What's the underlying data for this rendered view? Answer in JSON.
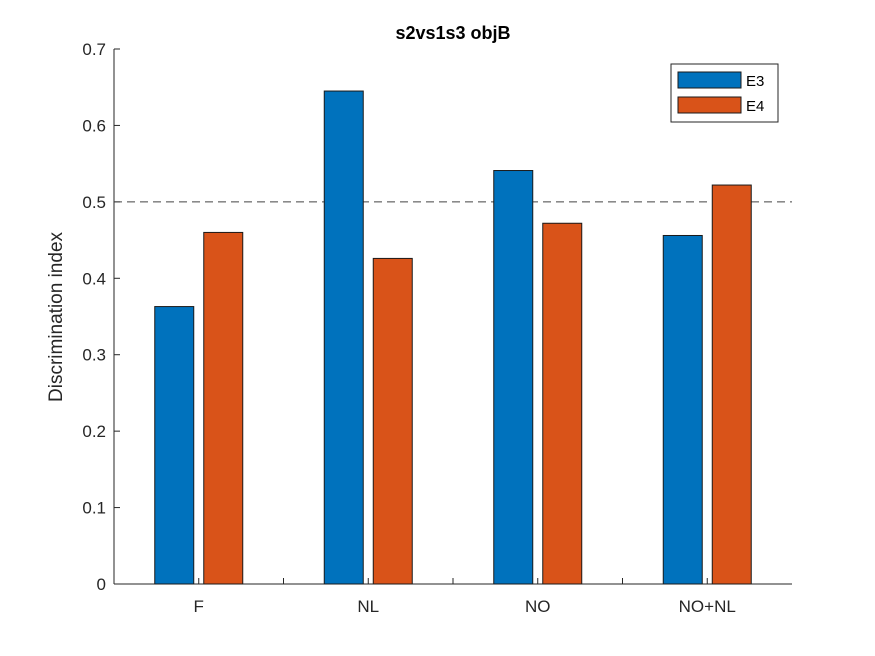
{
  "chart_data": {
    "type": "bar",
    "title": "s2vs1s3 objB",
    "xlabel": "",
    "ylabel": "Discrimination index",
    "categories": [
      "F",
      "NL",
      "NO",
      "NO+NL"
    ],
    "series": [
      {
        "name": "E3",
        "color": "#0072BD",
        "values": [
          0.363,
          0.645,
          0.541,
          0.456
        ]
      },
      {
        "name": "E4",
        "color": "#D95319",
        "values": [
          0.46,
          0.426,
          0.472,
          0.522
        ]
      }
    ],
    "ylim": [
      0,
      0.7
    ],
    "yticks": [
      0,
      0.1,
      0.2,
      0.3,
      0.4,
      0.5,
      0.6,
      0.7
    ],
    "ytick_labels": [
      "0",
      "0.1",
      "0.2",
      "0.3",
      "0.4",
      "0.5",
      "0.6",
      "0.7"
    ],
    "reference_line": {
      "y": 0.5,
      "style": "dashed"
    },
    "legend_position": "top-right",
    "grid": false
  }
}
